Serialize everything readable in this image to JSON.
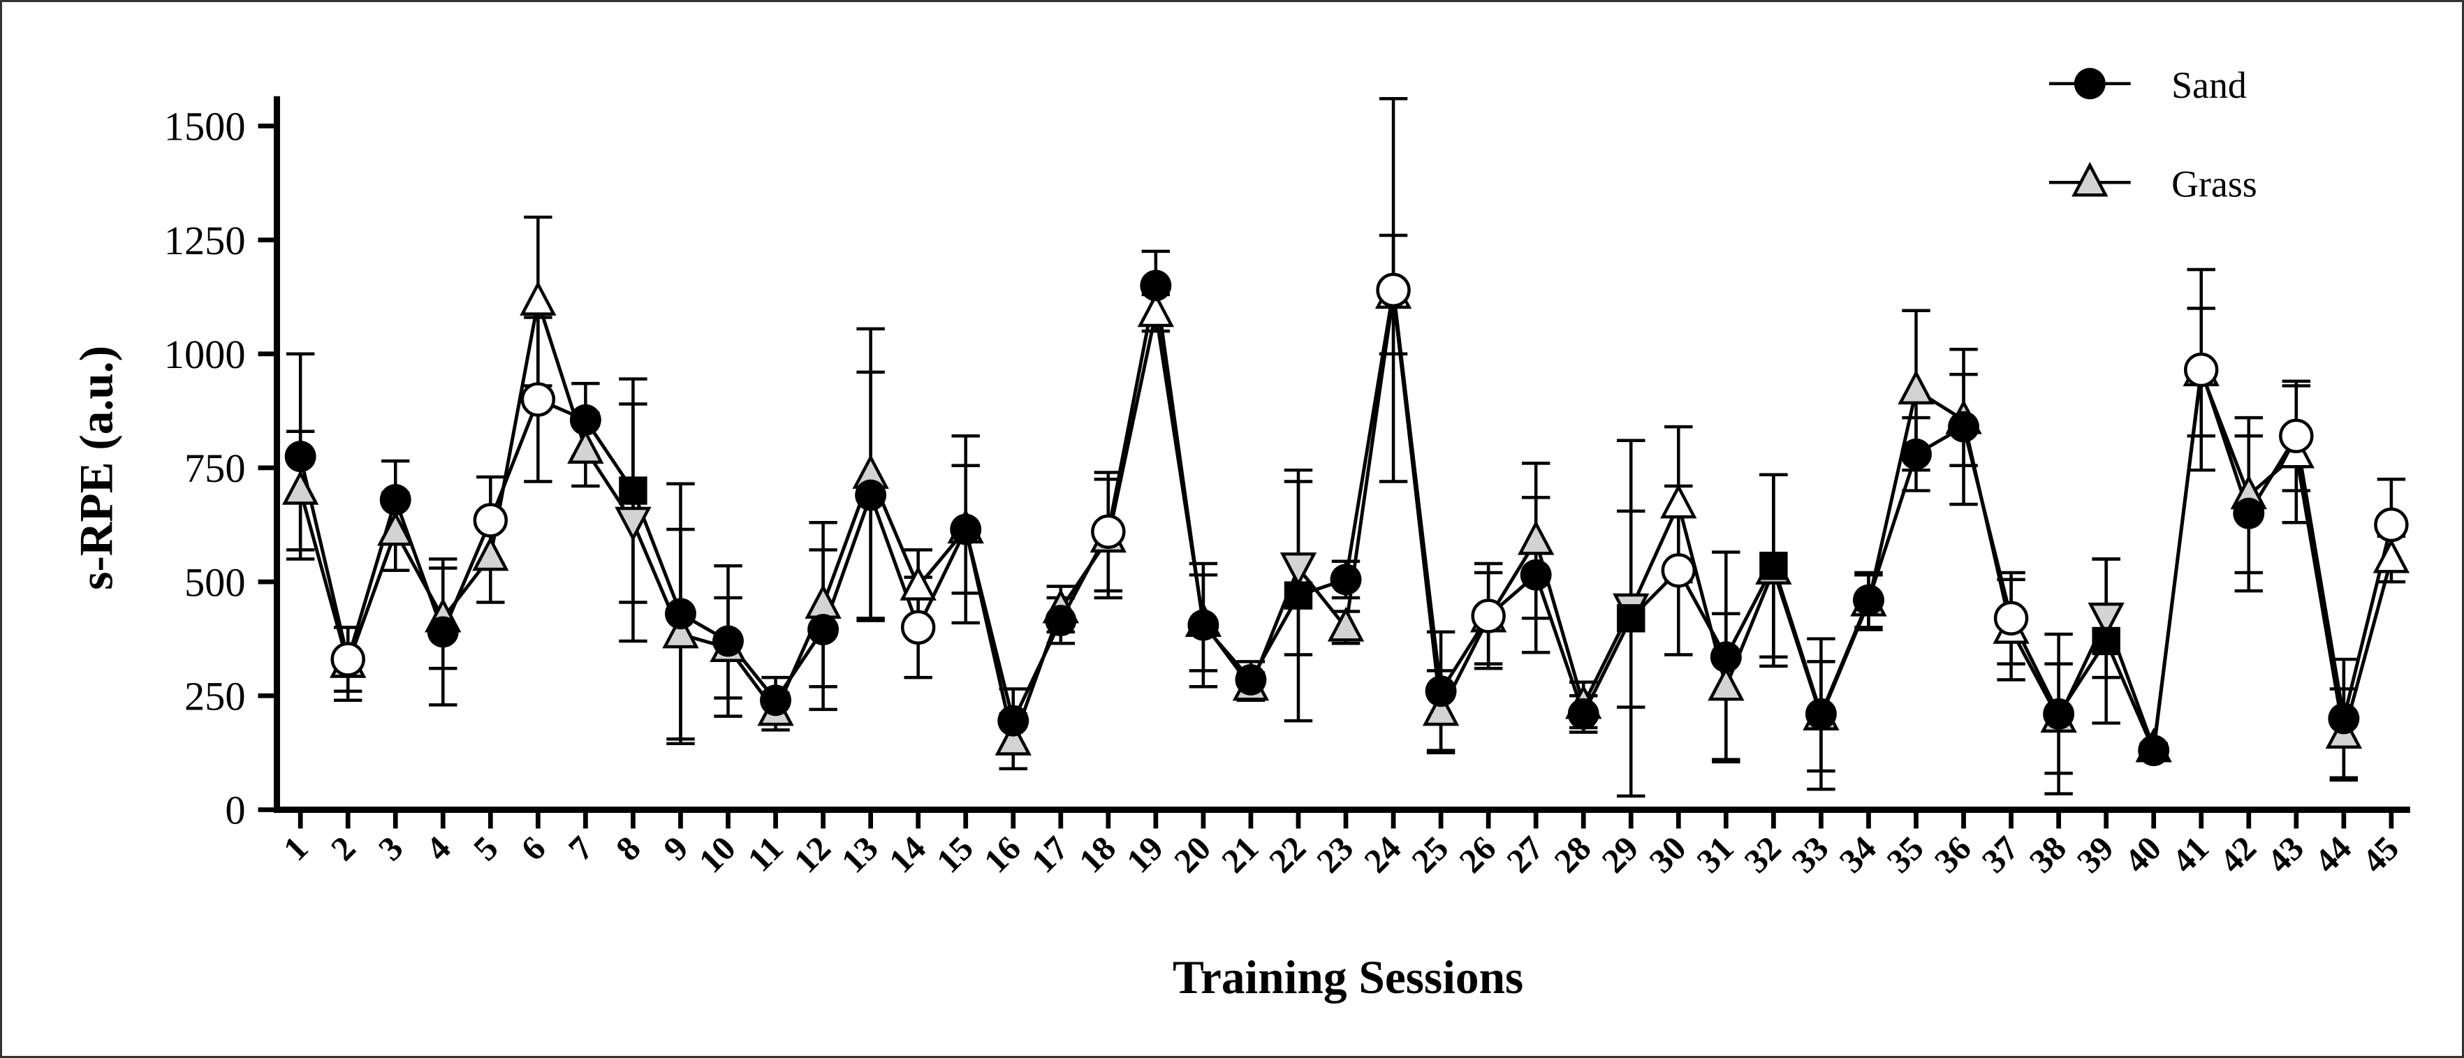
{
  "chart_data": {
    "type": "line",
    "title": "",
    "xlabel": "Training Sessions",
    "ylabel": "s-RPE (a.u.)",
    "ylim": [
      0,
      1500
    ],
    "yticks": [
      0,
      250,
      500,
      750,
      1000,
      1250,
      1500
    ],
    "x": [
      "1",
      "2",
      "3",
      "4",
      "5",
      "6",
      "7",
      "8",
      "9",
      "10",
      "11",
      "12",
      "13",
      "14",
      "15",
      "16",
      "17",
      "18",
      "19",
      "20",
      "21",
      "22",
      "23",
      "24",
      "25",
      "26",
      "27",
      "28",
      "29",
      "30",
      "31",
      "32",
      "33",
      "34",
      "35",
      "36",
      "37",
      "38",
      "39",
      "40",
      "41",
      "42",
      "43",
      "44",
      "45"
    ],
    "grid": false,
    "legend_position": "top-right",
    "series": [
      {
        "name": "Sand",
        "marker": "circle",
        "fill": "#000000",
        "values": [
          775,
          330,
          680,
          390,
          635,
          900,
          855,
          700,
          430,
          370,
          240,
          395,
          690,
          400,
          615,
          195,
          415,
          610,
          1150,
          405,
          285,
          470,
          505,
          1140,
          260,
          425,
          515,
          210,
          420,
          525,
          335,
          535,
          210,
          460,
          780,
          840,
          420,
          210,
          370,
          130,
          965,
          650,
          820,
          200,
          625
        ],
        "error_sd": [
          225,
          70,
          85,
          160,
          95,
          180,
          80,
          245,
          285,
          165,
          50,
          175,
          270,
          110,
          205,
          70,
          50,
          130,
          75,
          135,
          40,
          275,
          40,
          420,
          130,
          115,
          170,
          40,
          390,
          185,
          230,
          200,
          165,
          60,
          80,
          170,
          100,
          175,
          180,
          10,
          220,
          170,
          120,
          130,
          100
        ],
        "point_markers": [
          "filled-circle",
          "open-circle",
          "filled-circle",
          "filled-circle",
          "open-circle",
          "open-circle",
          "filled-circle",
          "filled-square",
          "filled-circle",
          "filled-circle",
          "filled-circle",
          "filled-circle",
          "filled-circle",
          "open-circle",
          "filled-circle",
          "filled-circle",
          "filled-circle",
          "open-circle",
          "filled-circle",
          "filled-circle",
          "filled-circle",
          "filled-square",
          "filled-circle",
          "open-circle",
          "filled-circle",
          "open-circle",
          "filled-circle",
          "filled-circle",
          "filled-square",
          "open-circle",
          "filled-circle",
          "filled-square",
          "filled-circle",
          "filled-circle",
          "filled-circle",
          "filled-circle",
          "open-circle",
          "filled-circle",
          "filled-square",
          "filled-circle",
          "open-circle",
          "filled-circle",
          "open-circle",
          "filled-circle",
          "open-circle"
        ]
      },
      {
        "name": "Grass",
        "marker": "triangle",
        "fill": "#d3d3d3",
        "values": [
          700,
          320,
          610,
          420,
          555,
          1115,
          790,
          630,
          385,
          355,
          215,
          450,
          735,
          490,
          615,
          150,
          440,
          595,
          1090,
          410,
          270,
          530,
          400,
          1130,
          215,
          420,
          590,
          230,
          440,
          670,
          270,
          525,
          205,
          455,
          920,
          855,
          395,
          200,
          420,
          135,
          960,
          690,
          780,
          165,
          550
        ],
        "error_sd": [
          130,
          80,
          85,
          110,
          100,
          185,
          80,
          260,
          230,
          110,
          40,
          180,
          320,
          80,
          140,
          60,
          50,
          130,
          40,
          105,
          30,
          190,
          35,
          130,
          90,
          100,
          170,
          50,
          215,
          170,
          160,
          210,
          120,
          60,
          175,
          100,
          110,
          120,
          130,
          10,
          140,
          170,
          150,
          100,
          50
        ],
        "point_markers": [
          "gray-triangle",
          "gray-triangle",
          "gray-triangle",
          "gray-triangle",
          "gray-triangle",
          "open-triangle",
          "gray-triangle",
          "gray-inverted-triangle",
          "gray-triangle",
          "gray-triangle",
          "gray-triangle",
          "gray-triangle",
          "gray-triangle",
          "open-triangle",
          "gray-triangle",
          "gray-triangle",
          "gray-triangle",
          "gray-triangle",
          "open-triangle",
          "gray-triangle",
          "gray-triangle",
          "gray-inverted-triangle",
          "gray-triangle",
          "open-triangle",
          "gray-triangle",
          "gray-triangle",
          "gray-triangle",
          "gray-triangle",
          "gray-inverted-triangle",
          "open-triangle",
          "gray-triangle",
          "gray-triangle",
          "gray-triangle",
          "gray-triangle",
          "gray-triangle",
          "gray-triangle",
          "open-triangle",
          "gray-triangle",
          "gray-inverted-triangle",
          "gray-triangle",
          "open-triangle",
          "gray-triangle",
          "open-triangle",
          "gray-triangle",
          "open-triangle"
        ]
      }
    ]
  }
}
